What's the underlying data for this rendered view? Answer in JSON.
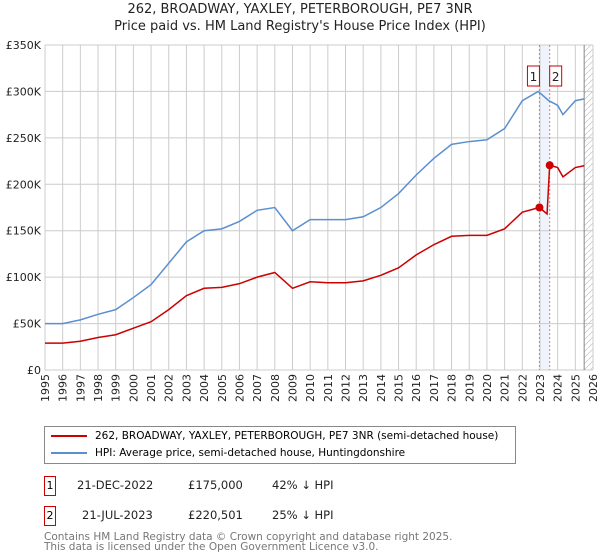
{
  "chart_data": {
    "type": "line",
    "title": "262, BROADWAY, YAXLEY, PETERBOROUGH, PE7 3NR",
    "subtitle": "Price paid vs. HM Land Registry's House Price Index (HPI)",
    "xlim": [
      1995,
      2026
    ],
    "ylim": [
      0,
      350000
    ],
    "x_ticks": [
      "1995",
      "1996",
      "1997",
      "1998",
      "1999",
      "2000",
      "2001",
      "2002",
      "2003",
      "2004",
      "2005",
      "2006",
      "2007",
      "2008",
      "2009",
      "2010",
      "2011",
      "2012",
      "2013",
      "2014",
      "2015",
      "2016",
      "2017",
      "2018",
      "2019",
      "2020",
      "2021",
      "2022",
      "2023",
      "2024",
      "2025",
      "2026"
    ],
    "y_ticks": [
      {
        "v": 0,
        "l": "£0"
      },
      {
        "v": 50000,
        "l": "£50K"
      },
      {
        "v": 100000,
        "l": "£100K"
      },
      {
        "v": 150000,
        "l": "£150K"
      },
      {
        "v": 200000,
        "l": "£200K"
      },
      {
        "v": 250000,
        "l": "£250K"
      },
      {
        "v": 300000,
        "l": "£300K"
      },
      {
        "v": 350000,
        "l": "£350K"
      }
    ],
    "grid": true,
    "series": [
      {
        "name": "262, BROADWAY, YAXLEY, PETERBOROUGH, PE7 3NR (semi-detached house)",
        "color": "#cc0000",
        "x": [
          1995,
          1996,
          1997,
          1998,
          1999,
          2000,
          2001,
          2002,
          2003,
          2004,
          2005,
          2006,
          2007,
          2008,
          2009,
          2010,
          2011,
          2012,
          2013,
          2014,
          2015,
          2016,
          2017,
          2018,
          2019,
          2020,
          2021,
          2022,
          2022.97,
          2023.4,
          2023.55,
          2024,
          2024.3,
          2025,
          2025.5
        ],
        "y": [
          29000,
          29000,
          31000,
          35000,
          38000,
          45000,
          52000,
          65000,
          80000,
          88000,
          89000,
          93000,
          100000,
          105000,
          88000,
          95000,
          94000,
          94000,
          96000,
          102000,
          110000,
          124000,
          135000,
          144000,
          145000,
          145000,
          152000,
          170000,
          175000,
          168000,
          220501,
          218000,
          208000,
          218000,
          220000
        ]
      },
      {
        "name": "HPI: Average price, semi-detached house, Huntingdonshire",
        "color": "#5b8fd0",
        "x": [
          1995,
          1996,
          1997,
          1998,
          1999,
          2000,
          2001,
          2002,
          2003,
          2004,
          2005,
          2006,
          2007,
          2008,
          2009,
          2010,
          2011,
          2012,
          2013,
          2014,
          2015,
          2016,
          2017,
          2018,
          2019,
          2020,
          2021,
          2022,
          2022.9,
          2023.5,
          2024,
          2024.3,
          2025,
          2025.5
        ],
        "y": [
          50000,
          50000,
          54000,
          60000,
          65000,
          78000,
          92000,
          115000,
          138000,
          150000,
          152000,
          160000,
          172000,
          175000,
          150000,
          162000,
          162000,
          162000,
          165000,
          175000,
          190000,
          210000,
          228000,
          243000,
          246000,
          248000,
          260000,
          290000,
          300000,
          290000,
          285000,
          275000,
          290000,
          292000
        ]
      }
    ],
    "markers": [
      {
        "label": "1",
        "x": 2022.97,
        "y": 175000
      },
      {
        "label": "2",
        "x": 2023.55,
        "y": 220501
      }
    ],
    "forecast_from": 2025.5
  },
  "legend": {
    "items": [
      {
        "label": "262, BROADWAY, YAXLEY, PETERBOROUGH, PE7 3NR (semi-detached house)",
        "color": "#cc0000"
      },
      {
        "label": "HPI: Average price, semi-detached house, Huntingdonshire",
        "color": "#5b8fd0"
      }
    ]
  },
  "transactions": [
    {
      "num": "1",
      "date": "21-DEC-2022",
      "price": "£175,000",
      "hpi": "42% ↓ HPI"
    },
    {
      "num": "2",
      "date": "21-JUL-2023",
      "price": "£220,501",
      "hpi": "25% ↓ HPI"
    }
  ],
  "footer": {
    "line1": "Contains HM Land Registry data © Crown copyright and database right 2025.",
    "line2": "This data is licensed under the Open Government Licence v3.0."
  }
}
